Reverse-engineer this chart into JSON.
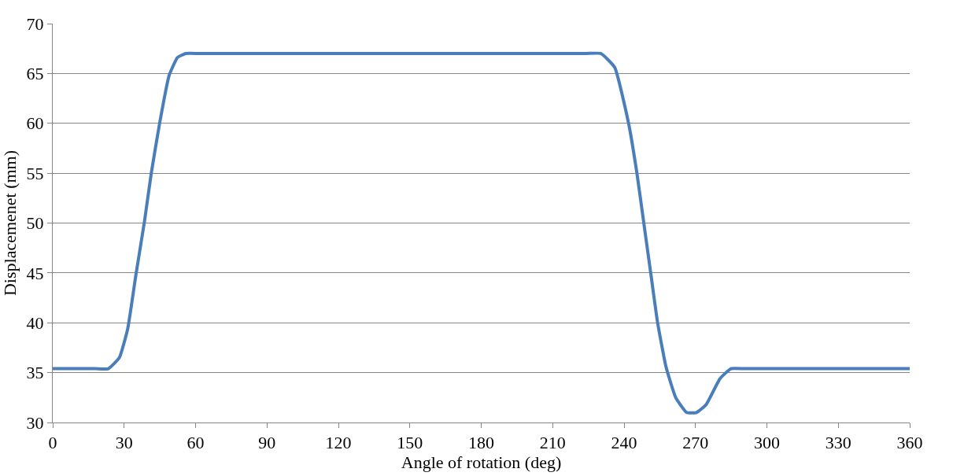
{
  "chart_data": {
    "type": "line",
    "xlabel": "Angle of rotation (deg)",
    "ylabel": "Displacemenet (mm)",
    "series": [
      {
        "color": "#4a7ebb",
        "x": [
          0,
          10,
          18,
          23.4,
          28.0,
          31.5,
          35.0,
          38.5,
          41.4,
          44.9,
          48.9,
          52.4,
          55.9,
          62,
          100,
          150,
          200,
          224,
          230.3,
          236.1,
          241.9,
          245.4,
          248.3,
          251.2,
          254.1,
          257.6,
          261.7,
          266.3,
          270.4,
          274.5,
          280.3,
          284.9,
          291,
          330,
          360
        ],
        "values": [
          35.4,
          35.4,
          35.4,
          35.4,
          36.5,
          39.4,
          44.9,
          50.1,
          55.0,
          60.0,
          64.8,
          66.6,
          67,
          67,
          67,
          67,
          67,
          67,
          67,
          65.6,
          60,
          55,
          50,
          45,
          40,
          35.6,
          32.5,
          31.0,
          31.0,
          31.8,
          34.4,
          35.4,
          35.4,
          35.4,
          35.4
        ]
      }
    ],
    "xlim": [
      0,
      360
    ],
    "xticks": [
      0,
      30,
      60,
      90,
      120,
      150,
      180,
      210,
      240,
      270,
      300,
      330,
      360
    ],
    "ylim": [
      30,
      70
    ],
    "yticks": [
      30,
      35,
      40,
      45,
      50,
      55,
      60,
      65,
      70
    ],
    "grid": "y",
    "marker": "none",
    "line_style": "solid"
  }
}
